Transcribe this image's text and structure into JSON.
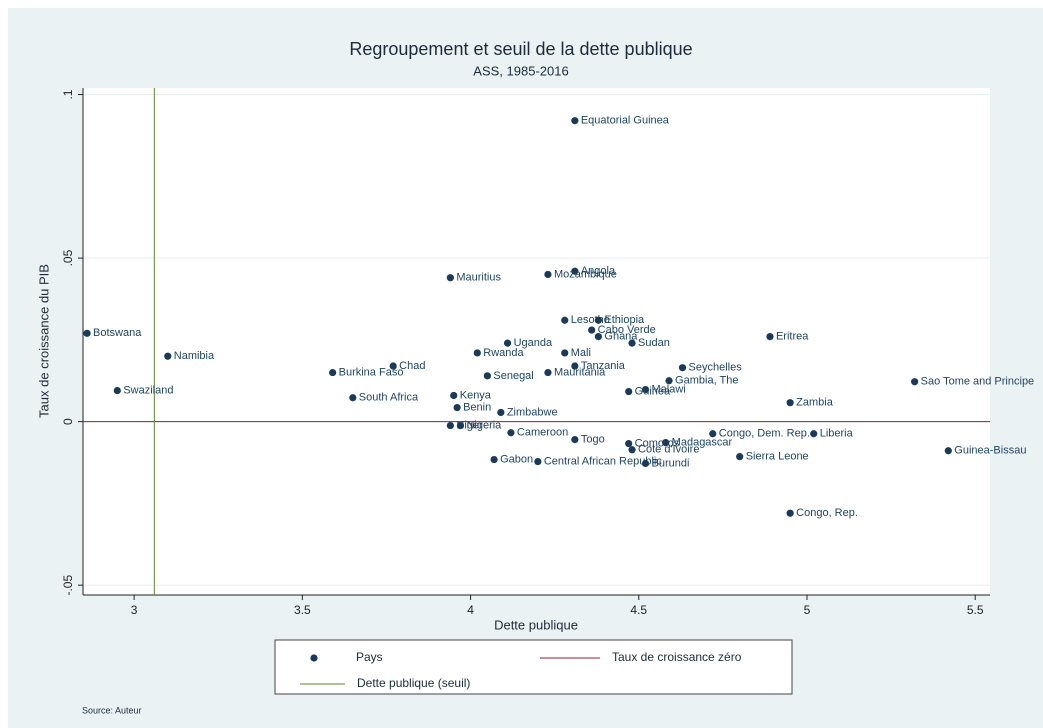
{
  "chart_data": {
    "type": "scatter",
    "title": "Regroupement et seuil de la dette publique",
    "subtitle": "ASS, 1985-2016",
    "x_label": "Dette publique",
    "y_label": "Taux de croissance du PIB",
    "source": "Source: Auteur",
    "xlim": [
      2.848,
      5.544
    ],
    "ylim": [
      -0.053,
      0.102
    ],
    "xticks": [
      3,
      3.5,
      4,
      4.5,
      5,
      5.5
    ],
    "yticks": [
      {
        "value": -0.05,
        "label": "-.05"
      },
      0,
      {
        "value": 0.05,
        "label": ".05"
      },
      {
        "value": 0.1,
        "label": ".1"
      }
    ],
    "grid": true,
    "series": [
      {
        "name": "Pays",
        "color": "#1a3a5c",
        "labels": [
          "Equatorial Guinea",
          "Angola",
          "Mozambique",
          "Mauritius",
          "Botswana",
          "Namibia",
          "Swaziland",
          "Burkina Faso",
          "Chad",
          "South Africa",
          "Lesotho",
          "Ethiopia",
          "Cabo Verde",
          "Ghana",
          "Sudan",
          "Uganda",
          "Rwanda",
          "Mali",
          "Tanzania",
          "Mauritania",
          "Senegal",
          "Eritrea",
          "Seychelles",
          "Gambia, The",
          "Malawi",
          "Guinea",
          "Zambia",
          "Sao Tome and Principe",
          "Kenya",
          "Benin",
          "Zimbabwe",
          "Niger",
          "Nigeria",
          "Cameroon",
          "Togo",
          "Comoros",
          "Cote d'Ivoire",
          "Madagascar",
          "Congo, Dem. Rep.",
          "Liberia",
          "Sierra Leone",
          "Guinea-Bissau",
          "Gabon",
          "Central African Republic",
          "Burundi",
          "Congo, Rep."
        ],
        "x": [
          4.31,
          4.31,
          4.23,
          3.94,
          2.86,
          3.1,
          2.95,
          3.59,
          3.77,
          3.65,
          4.28,
          4.38,
          4.36,
          4.38,
          4.48,
          4.11,
          4.02,
          4.28,
          4.31,
          4.23,
          4.05,
          4.89,
          4.63,
          4.59,
          4.52,
          4.47,
          4.95,
          5.32,
          3.95,
          3.96,
          4.09,
          3.94,
          3.97,
          4.12,
          4.31,
          4.47,
          4.48,
          4.58,
          4.72,
          5.02,
          4.8,
          5.42,
          4.07,
          4.2,
          4.52,
          4.95
        ],
        "y": [
          0.092,
          0.046,
          0.045,
          0.044,
          0.027,
          0.02,
          0.0095,
          0.015,
          0.017,
          0.0073,
          0.031,
          0.031,
          0.028,
          0.026,
          0.024,
          0.024,
          0.021,
          0.021,
          0.017,
          0.015,
          0.014,
          0.026,
          0.0165,
          0.0125,
          0.0098,
          0.0092,
          0.0058,
          0.0122,
          0.008,
          0.0043,
          0.0028,
          -0.0012,
          -0.0012,
          -0.0034,
          -0.0055,
          -0.0067,
          -0.0086,
          -0.0064,
          -0.0037,
          -0.0037,
          -0.0107,
          -0.0089,
          -0.0116,
          -0.0122,
          -0.0128,
          -0.028
        ]
      }
    ],
    "reference_lines": [
      {
        "name": "Taux de croissance zéro",
        "axis": "y",
        "value": 0,
        "color": "#9b1b30"
      },
      {
        "name": "Dette publique (seuil)",
        "axis": "x",
        "value": 3.06,
        "color": "#5a8a2a"
      }
    ]
  }
}
